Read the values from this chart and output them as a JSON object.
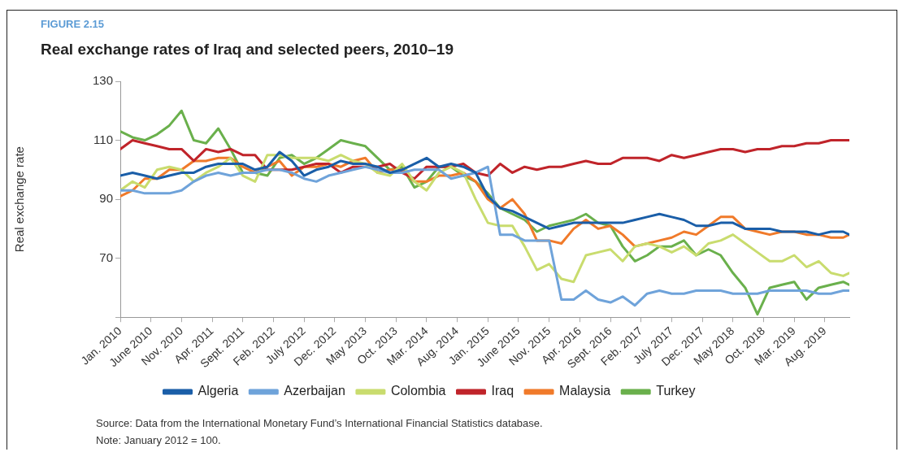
{
  "chart_data": {
    "type": "line",
    "subtitle": "FIGURE 2.15",
    "title": "Real exchange rates of Iraq and selected peers, 2010–19",
    "ylabel": "Real exchange rate",
    "annotations": [
      "Source: Data from the International Monetary Fund’s International Financial Statistics database.",
      "Note: January 2012 = 100."
    ],
    "x": [
      "2010-01",
      "2010-03",
      "2010-05",
      "2010-07",
      "2010-09",
      "2010-11",
      "2011-01",
      "2011-03",
      "2011-05",
      "2011-07",
      "2011-09",
      "2011-11",
      "2012-01",
      "2012-03",
      "2012-05",
      "2012-07",
      "2012-09",
      "2012-11",
      "2013-01",
      "2013-03",
      "2013-05",
      "2013-07",
      "2013-09",
      "2013-11",
      "2014-01",
      "2014-03",
      "2014-05",
      "2014-07",
      "2014-09",
      "2014-11",
      "2015-01",
      "2015-03",
      "2015-05",
      "2015-07",
      "2015-09",
      "2015-11",
      "2016-01",
      "2016-03",
      "2016-05",
      "2016-07",
      "2016-09",
      "2016-11",
      "2017-01",
      "2017-03",
      "2017-05",
      "2017-07",
      "2017-09",
      "2017-11",
      "2018-01",
      "2018-03",
      "2018-05",
      "2018-07",
      "2018-09",
      "2018-11",
      "2019-01",
      "2019-03",
      "2019-05",
      "2019-07",
      "2019-09",
      "2019-11",
      "2019-12"
    ],
    "series": [
      {
        "name": "Algeria",
        "color": "#1a5ea8",
        "values": [
          98,
          99,
          98,
          97,
          98,
          99,
          99,
          101,
          102,
          102,
          102,
          100,
          101,
          106,
          103,
          98,
          100,
          101,
          103,
          102,
          102,
          101,
          99,
          100,
          102,
          104,
          101,
          102,
          101,
          99,
          91,
          87,
          86,
          84,
          82,
          80,
          81,
          82,
          82,
          82,
          82,
          82,
          83,
          84,
          85,
          84,
          83,
          81,
          81,
          82,
          82,
          80,
          80,
          80,
          79,
          79,
          79,
          78,
          79,
          79,
          78
        ]
      },
      {
        "name": "Azerbaijan",
        "color": "#6fa3da",
        "values": [
          93,
          93,
          92,
          92,
          92,
          93,
          96,
          98,
          99,
          98,
          99,
          99,
          100,
          100,
          99,
          97,
          96,
          98,
          99,
          100,
          101,
          100,
          99,
          99,
          100,
          100,
          100,
          97,
          98,
          99,
          101,
          78,
          78,
          76,
          76,
          76,
          56,
          56,
          59,
          56,
          55,
          57,
          54,
          58,
          59,
          58,
          58,
          59,
          59,
          59,
          58,
          58,
          58,
          59,
          59,
          59,
          59,
          58,
          58,
          59,
          59
        ]
      },
      {
        "name": "Colombia",
        "color": "#c9dc6e",
        "values": [
          93,
          96,
          94,
          100,
          101,
          100,
          96,
          99,
          101,
          104,
          98,
          96,
          105,
          105,
          104,
          104,
          104,
          103,
          105,
          103,
          102,
          99,
          98,
          102,
          96,
          93,
          99,
          101,
          99,
          90,
          82,
          81,
          81,
          74,
          66,
          68,
          63,
          62,
          71,
          72,
          73,
          69,
          74,
          75,
          74,
          72,
          74,
          71,
          75,
          76,
          78,
          75,
          72,
          69,
          69,
          71,
          67,
          69,
          65,
          64,
          65
        ]
      },
      {
        "name": "Iraq",
        "color": "#c0242a",
        "values": [
          107,
          110,
          109,
          108,
          107,
          107,
          103,
          107,
          106,
          107,
          105,
          105,
          100,
          100,
          100,
          101,
          102,
          102,
          99,
          101,
          101,
          101,
          102,
          99,
          97,
          101,
          101,
          101,
          102,
          99,
          98,
          102,
          99,
          101,
          100,
          101,
          101,
          102,
          103,
          102,
          102,
          104,
          104,
          104,
          103,
          105,
          104,
          105,
          106,
          107,
          107,
          106,
          107,
          107,
          108,
          108,
          109,
          109,
          110,
          110,
          110
        ]
      },
      {
        "name": "Malaysia",
        "color": "#f07a2a",
        "values": [
          91,
          93,
          97,
          97,
          100,
          100,
          103,
          103,
          104,
          104,
          101,
          99,
          101,
          103,
          98,
          101,
          101,
          102,
          101,
          103,
          104,
          99,
          100,
          100,
          96,
          96,
          98,
          98,
          99,
          96,
          90,
          87,
          90,
          85,
          76,
          76,
          75,
          80,
          83,
          80,
          81,
          78,
          74,
          75,
          76,
          77,
          79,
          78,
          81,
          84,
          84,
          80,
          79,
          78,
          79,
          79,
          78,
          78,
          77,
          77,
          78
        ]
      },
      {
        "name": "Turkey",
        "color": "#6ab04c",
        "values": [
          113,
          111,
          110,
          112,
          115,
          120,
          110,
          109,
          114,
          107,
          99,
          99,
          98,
          104,
          105,
          102,
          104,
          107,
          110,
          109,
          108,
          104,
          100,
          101,
          94,
          96,
          101,
          101,
          98,
          96,
          92,
          87,
          85,
          83,
          79,
          81,
          82,
          83,
          85,
          82,
          81,
          74,
          69,
          71,
          74,
          74,
          76,
          71,
          73,
          71,
          65,
          60,
          51,
          60,
          61,
          62,
          56,
          60,
          61,
          62,
          61
        ]
      }
    ],
    "xlim": [
      "2010-01",
      "2019-12"
    ],
    "xticks": [
      {
        "value": "2010-01",
        "label": "Jan. 2010"
      },
      {
        "value": "2010-06",
        "label": "June 2010"
      },
      {
        "value": "2010-11",
        "label": "Nov. 2010"
      },
      {
        "value": "2011-04",
        "label": "Apr. 2011"
      },
      {
        "value": "2011-09",
        "label": "Sept. 2011"
      },
      {
        "value": "2012-02",
        "label": "Feb. 2012"
      },
      {
        "value": "2012-07",
        "label": "July 2012"
      },
      {
        "value": "2012-12",
        "label": "Dec. 2012"
      },
      {
        "value": "2013-05",
        "label": "May 2013"
      },
      {
        "value": "2013-10",
        "label": "Oct. 2013"
      },
      {
        "value": "2014-03",
        "label": "Mar. 2014"
      },
      {
        "value": "2014-08",
        "label": "Aug. 2014"
      },
      {
        "value": "2015-01",
        "label": "Jan. 2015"
      },
      {
        "value": "2015-06",
        "label": "June 2015"
      },
      {
        "value": "2015-11",
        "label": "Nov. 2015"
      },
      {
        "value": "2016-04",
        "label": "Apr. 2016"
      },
      {
        "value": "2016-09",
        "label": "Sept. 2016"
      },
      {
        "value": "2017-02",
        "label": "Feb. 2017"
      },
      {
        "value": "2017-07",
        "label": "July 2017"
      },
      {
        "value": "2017-12",
        "label": "Dec. 2017"
      },
      {
        "value": "2018-05",
        "label": "May 2018"
      },
      {
        "value": "2018-10",
        "label": "Oct. 2018"
      },
      {
        "value": "2019-03",
        "label": "Mar. 2019"
      },
      {
        "value": "2019-08",
        "label": "Aug. 2019"
      }
    ],
    "ylim": [
      50,
      130
    ],
    "yticks": [
      {
        "value": 50,
        "label": null
      },
      70,
      90,
      110,
      130
    ],
    "grid": false,
    "legend": "bottom",
    "marker": "none",
    "line_style": "solid"
  }
}
